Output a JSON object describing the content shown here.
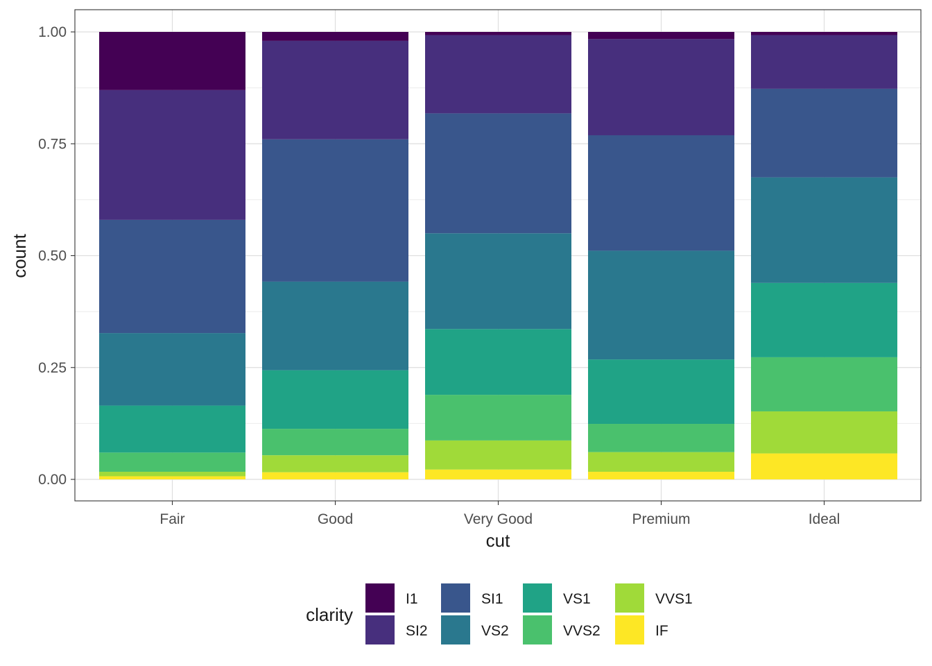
{
  "chart_data": {
    "type": "bar",
    "stacked": true,
    "position": "fill",
    "categories": [
      "Fair",
      "Good",
      "Very Good",
      "Premium",
      "Ideal"
    ],
    "xlabel": "cut",
    "ylabel": "count",
    "ylim": [
      0,
      1
    ],
    "yticks": [
      "0.00",
      "0.25",
      "0.50",
      "0.75",
      "1.00"
    ],
    "grid": true,
    "legend": {
      "title": "clarity",
      "placement": "bottom",
      "entries": [
        "I1",
        "SI2",
        "SI1",
        "VS2",
        "VS1",
        "VVS2",
        "VVS1",
        "IF"
      ]
    },
    "series": [
      {
        "name": "I1",
        "color": "#440154",
        "values": [
          0.13,
          0.02,
          0.007,
          0.016,
          0.007
        ]
      },
      {
        "name": "SI2",
        "color": "#472F7D",
        "values": [
          0.29,
          0.22,
          0.175,
          0.215,
          0.12
        ]
      },
      {
        "name": "SI1",
        "color": "#39568C",
        "values": [
          0.253,
          0.318,
          0.268,
          0.258,
          0.198
        ]
      },
      {
        "name": "VS2",
        "color": "#2A788E",
        "values": [
          0.162,
          0.198,
          0.214,
          0.243,
          0.236
        ]
      },
      {
        "name": "VS1",
        "color": "#20A386",
        "values": [
          0.105,
          0.131,
          0.147,
          0.144,
          0.166
        ]
      },
      {
        "name": "VVS2",
        "color": "#4AC16D",
        "values": [
          0.043,
          0.059,
          0.102,
          0.063,
          0.121
        ]
      },
      {
        "name": "VVS1",
        "color": "#A0DA39",
        "values": [
          0.01,
          0.038,
          0.065,
          0.044,
          0.094
        ]
      },
      {
        "name": "IF",
        "color": "#FDE725",
        "values": [
          0.007,
          0.016,
          0.022,
          0.017,
          0.058
        ]
      }
    ]
  }
}
